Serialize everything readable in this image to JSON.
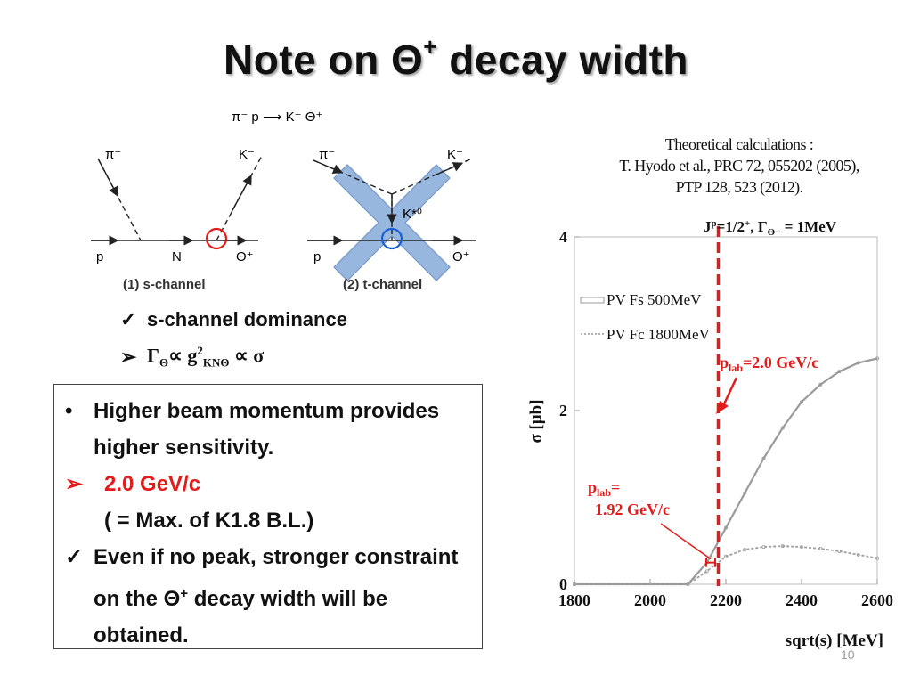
{
  "slide": {
    "title_prefix": "Note on Θ",
    "title_sup": "+",
    "title_suffix": " decay width",
    "page_number": "10"
  },
  "diagram": {
    "reaction": "π⁻ p ⟶ K⁻ Θ⁺",
    "s_channel": {
      "pi": "π⁻",
      "K": "K⁻",
      "p": "p",
      "N": "N",
      "Theta": "Θ⁺",
      "caption": "(1) s-channel"
    },
    "t_channel": {
      "pi": "π⁻",
      "K": "K⁻",
      "K0": "K*⁰",
      "p": "p",
      "Theta": "Θ⁺",
      "caption": "(2) t-channel"
    },
    "colors": {
      "circle_s": "#e31b1b",
      "circle_t": "#1a5fd6",
      "cross_fill": "#8fb1dc",
      "cross_stroke": "#6a8fc2"
    }
  },
  "bullets_top": [
    {
      "marker": "✓",
      "text": "s-channel dominance"
    },
    {
      "marker": "➢",
      "formula": {
        "gamma": "Γ",
        "gamma_sub": "Θ",
        "prop": "∝",
        "g": " g",
        "g_sup": "2",
        "g_sub": "KNΘ",
        "prop2": " ∝ ",
        "sigma": "σ"
      }
    }
  ],
  "box": {
    "items": [
      {
        "marker": "•",
        "text": "Higher beam momentum provides higher sensitivity."
      },
      {
        "marker": "➢",
        "text": "2.0 GeV/c",
        "color": "#e31b1b"
      },
      {
        "marker": "",
        "text": "( = Max. of K1.8 B.L.)"
      },
      {
        "marker": "✓",
        "text_before": "Even if no peak, stronger constraint on the Θ",
        "text_sup": "+",
        "text_after": " decay width will be obtained."
      }
    ]
  },
  "theory": {
    "line1": "Theoretical calculations :",
    "line2": "T. Hyodo et al.,  PRC 72, 055202 (2005),",
    "line3": "PTP 128, 523 (2012)."
  },
  "chart_data": {
    "type": "line",
    "xlabel": "sqrt(s) [MeV]",
    "ylabel": "σ [μb]",
    "xlim": [
      1800,
      2600
    ],
    "ylim": [
      0,
      4
    ],
    "xticks": [
      "1800",
      "2000",
      "2200",
      "2400",
      "2600"
    ],
    "yticks": [
      "0",
      "2",
      "4"
    ],
    "header": {
      "J": "J",
      "J_sup": "p",
      "rest": "=1/2",
      "rest_sup": "+",
      "comma": ", Γ",
      "g_sub": "Θ+",
      "tail": " = 1MeV"
    },
    "series": [
      {
        "name": "PV Fs 500MeV",
        "x": [
          1800,
          2100,
          2150,
          2200,
          2250,
          2300,
          2350,
          2400,
          2450,
          2500,
          2550,
          2600
        ],
        "values": [
          0,
          0,
          0.25,
          0.65,
          1.05,
          1.45,
          1.8,
          2.1,
          2.3,
          2.45,
          2.55,
          2.6
        ]
      },
      {
        "name": "PV Fc 1800MeV",
        "x": [
          1800,
          2100,
          2150,
          2200,
          2250,
          2300,
          2350,
          2400,
          2450,
          2500,
          2550,
          2600
        ],
        "values": [
          0,
          0,
          0.15,
          0.32,
          0.4,
          0.43,
          0.44,
          0.43,
          0.41,
          0.38,
          0.34,
          0.3
        ]
      }
    ],
    "vline": {
      "x": 2180,
      "color": "#e31b1b"
    },
    "annotations": {
      "plab_top_p": "p",
      "plab_top_sub": "lab",
      "plab_top_val": "=2.0 GeV/c",
      "plab_bot_p": "p",
      "plab_bot_sub": "lab",
      "plab_bot_eq": "=",
      "plab_bot_val": "1.92 GeV/c",
      "plab_bot_x": 2160,
      "color": "#e31b1b"
    }
  }
}
